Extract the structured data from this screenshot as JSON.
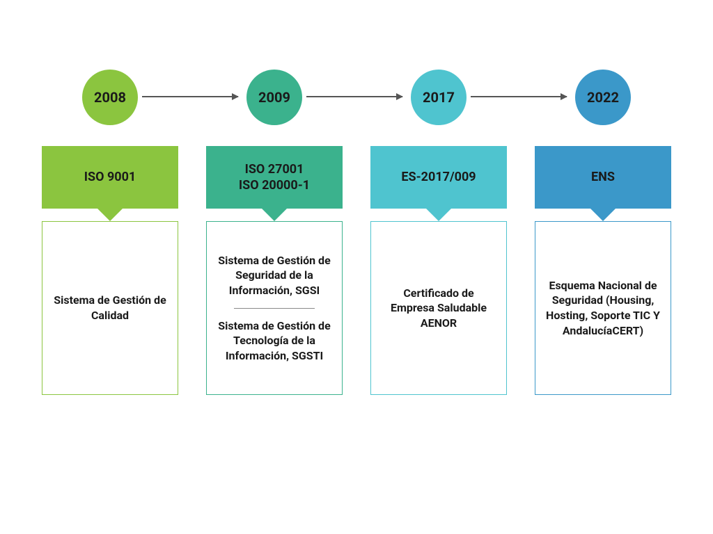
{
  "diagram": {
    "type": "timeline",
    "background_color": "#ffffff",
    "arrow_color": "#555555",
    "year_font_size": 20,
    "title_font_size": 18,
    "desc_font_size": 16,
    "text_color": "#1a1a1a",
    "items": [
      {
        "year": "2008",
        "circle_color": "#8bc53f",
        "box_color": "#8bc53f",
        "border_color": "#8bc53f",
        "title_lines": [
          "ISO 9001"
        ],
        "descriptions": [
          "Sistema de Gestión de Calidad"
        ]
      },
      {
        "year": "2009",
        "circle_color": "#3bb28d",
        "box_color": "#3bb28d",
        "border_color": "#3bb28d",
        "title_lines": [
          "ISO 27001",
          "ISO 20000-1"
        ],
        "descriptions": [
          "Sistema de Gestión de Seguridad de la Información, SGSI",
          "Sistema de Gestión de Tecnología de la Información, SGSTI"
        ]
      },
      {
        "year": "2017",
        "circle_color": "#4fc4cf",
        "box_color": "#4fc4cf",
        "border_color": "#4fc4cf",
        "title_lines": [
          "ES-2017/009"
        ],
        "descriptions": [
          "Certificado de Empresa Saludable AENOR"
        ]
      },
      {
        "year": "2022",
        "circle_color": "#3b98c9",
        "box_color": "#3b98c9",
        "border_color": "#3b98c9",
        "title_lines": [
          "ENS"
        ],
        "descriptions": [
          "Esquema Nacional de Seguridad (Housing, Hosting, Soporte TIC Y AndalucíaCERT)"
        ]
      }
    ]
  }
}
